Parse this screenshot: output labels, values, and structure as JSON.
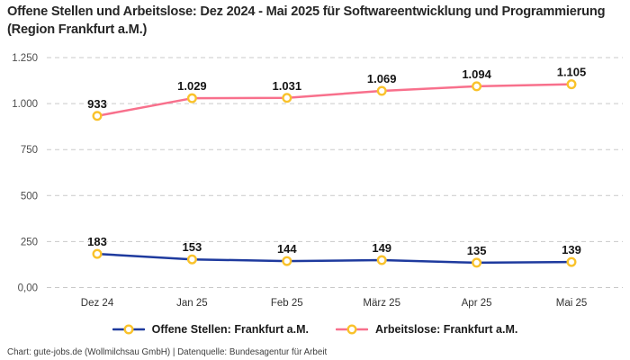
{
  "title": "Offene Stellen und Arbeitslose: Dez 2024 - Mai 2025 für Softwareentwicklung und Programmierung (Region Frankfurt a.M.)",
  "footer": "Chart: gute-jobs.de (Wollmilchsau GmbH) | Datenquelle: Bundesagentur für Arbeit",
  "colors": {
    "open_positions": "#1e3a9e",
    "unemployed": "#f8708c",
    "marker_ring": "#f9c22b",
    "marker_fill": "#ffffff",
    "grid": "#c9c9c9"
  },
  "chart_data": {
    "type": "line",
    "categories": [
      "Dez 24",
      "Jan 25",
      "Feb 25",
      "März 25",
      "Apr 25",
      "Mai 25"
    ],
    "series": [
      {
        "name": "Offene Stellen: Frankfurt a.M.",
        "values": [
          183,
          153,
          144,
          149,
          135,
          139
        ],
        "labels": [
          "183",
          "153",
          "144",
          "149",
          "135",
          "139"
        ],
        "color_key": "open_positions"
      },
      {
        "name": "Arbeitslose: Frankfurt a.M.",
        "values": [
          933,
          1029,
          1031,
          1069,
          1094,
          1105
        ],
        "labels": [
          "933",
          "1.029",
          "1.031",
          "1.069",
          "1.094",
          "1.105"
        ],
        "color_key": "unemployed"
      }
    ],
    "y_ticks": [
      "1.250",
      "1.000",
      "750",
      "500",
      "250",
      "0,00"
    ],
    "y_tick_values": [
      1250,
      1000,
      750,
      500,
      250,
      0
    ],
    "ylim": [
      0,
      1250
    ],
    "xlabel": "",
    "ylabel": "",
    "grid": "horizontal-dashed",
    "legend_position": "bottom",
    "marker": "ring"
  }
}
